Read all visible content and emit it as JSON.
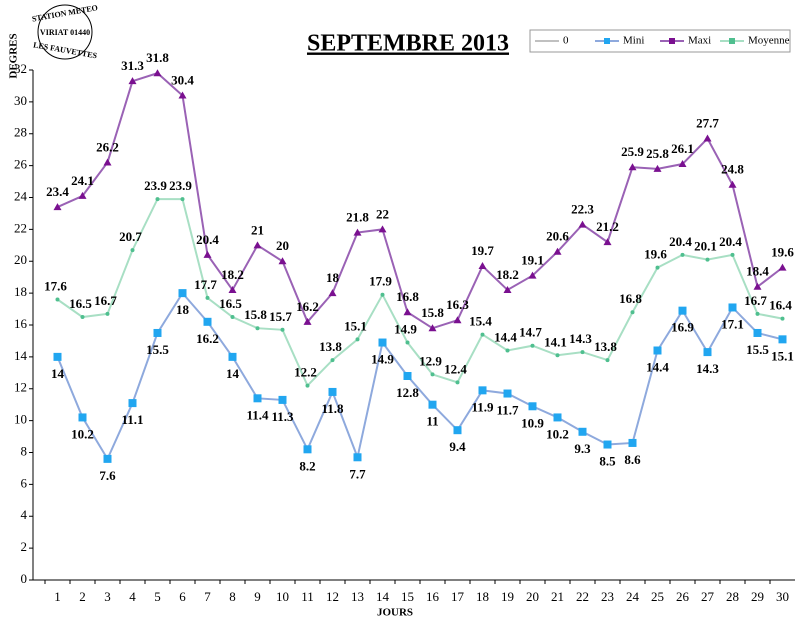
{
  "chart_data": {
    "type": "line",
    "title": "SEPTEMBRE 2013",
    "y_label": "DEGRES",
    "x_label": "JOURS",
    "stamp": [
      "STATION METEO",
      "VIRIAT 01440",
      "LES FAUVETTES"
    ],
    "categories": [
      "1",
      "2",
      "3",
      "4",
      "5",
      "6",
      "7",
      "8",
      "9",
      "10",
      "11",
      "12",
      "13",
      "14",
      "15",
      "16",
      "17",
      "18",
      "19",
      "20",
      "21",
      "22",
      "23",
      "24",
      "25",
      "26",
      "27",
      "28",
      "29",
      "30"
    ],
    "series": [
      {
        "name": "0",
        "color": "#c0c0c0",
        "values": [
          null,
          null,
          null,
          null,
          null,
          null,
          null,
          null,
          null,
          null,
          null,
          null,
          null,
          null,
          null,
          null,
          null,
          null,
          null,
          null,
          null,
          null,
          null,
          null,
          null,
          null,
          null,
          null,
          null,
          null
        ]
      },
      {
        "name": "Mini",
        "color": "#8ea9dd",
        "marker": "#21a6f0",
        "values": [
          14,
          10.2,
          7.6,
          11.1,
          15.5,
          18,
          16.2,
          14,
          11.4,
          11.3,
          8.2,
          11.8,
          7.7,
          14.9,
          12.8,
          11,
          9.4,
          11.9,
          11.7,
          10.9,
          10.2,
          9.3,
          8.5,
          8.6,
          14.4,
          16.9,
          14.3,
          17.1,
          15.5,
          15.1
        ]
      },
      {
        "name": "Maxi",
        "color": "#9a62b5",
        "marker": "#7a1090",
        "values": [
          23.4,
          24.1,
          26.2,
          31.3,
          31.8,
          30.4,
          20.4,
          18.2,
          21,
          20,
          16.2,
          18,
          21.8,
          22,
          16.8,
          15.8,
          16.3,
          19.7,
          18.2,
          19.1,
          20.6,
          22.3,
          21.2,
          25.9,
          25.8,
          26.1,
          27.7,
          24.8,
          18.4,
          19.6
        ]
      },
      {
        "name": "Moyenne",
        "color": "#a8dfc4",
        "marker": "#4fbf8f",
        "values": [
          17.6,
          16.5,
          16.7,
          20.7,
          23.9,
          23.9,
          17.7,
          16.5,
          15.8,
          15.7,
          12.2,
          13.8,
          15.1,
          17.9,
          14.9,
          12.9,
          12.4,
          15.4,
          14.4,
          14.7,
          14.1,
          14.3,
          13.8,
          16.8,
          19.6,
          20.4,
          20.1,
          20.4,
          16.7,
          16.4
        ]
      }
    ],
    "ylim": [
      0,
      32
    ],
    "yticks": [
      0,
      2,
      4,
      6,
      8,
      10,
      12,
      14,
      16,
      18,
      20,
      22,
      24,
      26,
      28,
      30,
      32
    ],
    "legend": "top-right"
  }
}
